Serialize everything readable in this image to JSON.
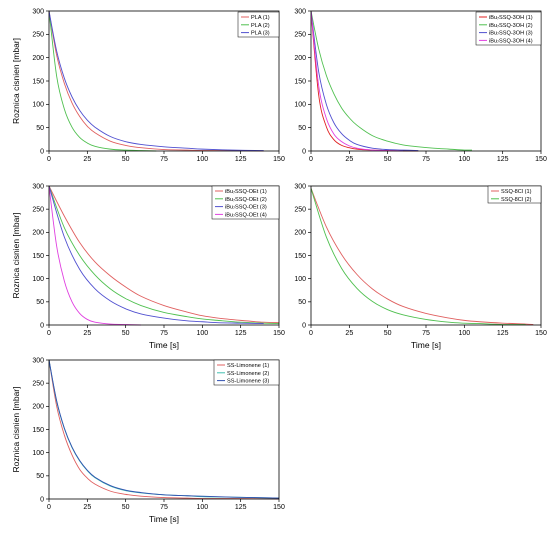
{
  "chart_data": [
    {
      "type": "line",
      "title": "",
      "xlabel": "",
      "ylabel": "Roznica cisnien [mbar]",
      "xlim": [
        0,
        150
      ],
      "ylim": [
        0,
        300
      ],
      "xticks": [
        0,
        25,
        50,
        75,
        100,
        125,
        150
      ],
      "yticks": [
        0,
        50,
        100,
        150,
        200,
        250,
        300
      ],
      "legend_position": "top-right",
      "series": [
        {
          "name": "PLA (1)",
          "color": "#e06060",
          "x": [
            0,
            5,
            10,
            15,
            20,
            25,
            30,
            40,
            50,
            60,
            75,
            90,
            100,
            120,
            140
          ],
          "y": [
            300,
            205,
            145,
            103,
            74,
            53,
            39,
            21,
            12,
            7,
            3,
            2,
            1,
            1,
            0
          ]
        },
        {
          "name": "PLA (2)",
          "color": "#50c050",
          "x": [
            0,
            5,
            10,
            15,
            20,
            25,
            30,
            40,
            50,
            60,
            70
          ],
          "y": [
            300,
            160,
            90,
            51,
            29,
            17,
            10,
            4,
            2,
            1,
            0
          ]
        },
        {
          "name": "PLA (3)",
          "color": "#5050d0",
          "x": [
            0,
            5,
            10,
            15,
            20,
            25,
            30,
            40,
            50,
            60,
            75,
            90,
            100,
            120,
            140
          ],
          "y": [
            300,
            214,
            156,
            116,
            87,
            66,
            51,
            31,
            20,
            14,
            9,
            6,
            4,
            2,
            1
          ]
        }
      ]
    },
    {
      "type": "line",
      "title": "",
      "xlabel": "",
      "ylabel": "",
      "xlim": [
        0,
        150
      ],
      "ylim": [
        0,
        300
      ],
      "xticks": [
        0,
        25,
        50,
        75,
        100,
        125,
        150
      ],
      "yticks": [
        0,
        50,
        100,
        150,
        200,
        250,
        300
      ],
      "legend_position": "top-right",
      "series": [
        {
          "name": "iBu₇SSQ-3OH (1)",
          "color": "#e02020",
          "x": [
            0,
            5,
            10,
            15,
            20,
            25,
            30,
            40,
            50,
            60,
            70
          ],
          "y": [
            300,
            120,
            52,
            24,
            12,
            7,
            4,
            2,
            1,
            0,
            0
          ]
        },
        {
          "name": "iBu₇SSQ-3OH (2)",
          "color": "#50c050",
          "x": [
            0,
            5,
            10,
            15,
            20,
            25,
            30,
            40,
            50,
            60,
            70,
            80,
            90,
            100,
            105
          ],
          "y": [
            300,
            219,
            162,
            122,
            92,
            71,
            55,
            33,
            21,
            13,
            9,
            6,
            4,
            2,
            2
          ]
        },
        {
          "name": "iBu₇SSQ-3OH (3)",
          "color": "#5050d0",
          "x": [
            0,
            5,
            10,
            15,
            20,
            25,
            30,
            40,
            50,
            60,
            70
          ],
          "y": [
            300,
            170,
            100,
            60,
            37,
            23,
            14,
            6,
            3,
            2,
            1
          ]
        },
        {
          "name": "iBu₇SSQ-3OH (4)",
          "color": "#e040e0",
          "x": [
            0,
            5,
            10,
            15,
            20,
            25,
            30,
            40,
            50,
            60
          ],
          "y": [
            300,
            140,
            70,
            36,
            20,
            11,
            6,
            2,
            1,
            0
          ]
        }
      ]
    },
    {
      "type": "line",
      "title": "",
      "xlabel": "Time [s]",
      "ylabel": "Roznica cisnien [mbar]",
      "xlim": [
        0,
        150
      ],
      "ylim": [
        0,
        300
      ],
      "xticks": [
        0,
        25,
        50,
        75,
        100,
        125,
        150
      ],
      "yticks": [
        0,
        50,
        100,
        150,
        200,
        250,
        300
      ],
      "legend_position": "top-right",
      "series": [
        {
          "name": "iBu₇SSQ-OEt (1)",
          "color": "#e06060",
          "x": [
            0,
            10,
            20,
            30,
            40,
            50,
            60,
            75,
            90,
            100,
            110,
            125,
            140,
            150
          ],
          "y": [
            300,
            235,
            178,
            136,
            106,
            82,
            62,
            42,
            28,
            20,
            15,
            10,
            6,
            5
          ]
        },
        {
          "name": "iBu₇SSQ-OEt (2)",
          "color": "#50c050",
          "x": [
            0,
            10,
            20,
            30,
            40,
            50,
            60,
            75,
            90,
            100,
            110,
            125,
            140,
            150
          ],
          "y": [
            300,
            210,
            150,
            108,
            78,
            57,
            42,
            27,
            18,
            13,
            10,
            6,
            4,
            3
          ]
        },
        {
          "name": "iBu₇SSQ-OEt (3)",
          "color": "#5050d0",
          "x": [
            0,
            10,
            20,
            30,
            40,
            50,
            60,
            75,
            90,
            100,
            110,
            125,
            140
          ],
          "y": [
            300,
            190,
            120,
            78,
            52,
            35,
            24,
            15,
            9,
            7,
            5,
            4,
            3
          ]
        },
        {
          "name": "iBu₇SSQ-OEt (4)",
          "color": "#e040e0",
          "x": [
            0,
            5,
            10,
            15,
            20,
            25,
            30,
            40,
            50,
            60
          ],
          "y": [
            300,
            170,
            95,
            50,
            25,
            12,
            6,
            2,
            1,
            0
          ]
        }
      ]
    },
    {
      "type": "line",
      "title": "",
      "xlabel": "Time [s]",
      "ylabel": "",
      "xlim": [
        0,
        150
      ],
      "ylim": [
        0,
        300
      ],
      "xticks": [
        0,
        25,
        50,
        75,
        100,
        125,
        150
      ],
      "yticks": [
        0,
        50,
        100,
        150,
        200,
        250,
        300
      ],
      "legend_position": "top-right",
      "series": [
        {
          "name": "SSQ-8Cl (1)",
          "color": "#e06060",
          "x": [
            0,
            10,
            20,
            30,
            40,
            50,
            60,
            75,
            90,
            100,
            110,
            125,
            140,
            145
          ],
          "y": [
            295,
            212,
            152,
            109,
            78,
            56,
            40,
            25,
            15,
            10,
            7,
            4,
            2,
            1
          ]
        },
        {
          "name": "SSQ-8Cl (2)",
          "color": "#50c050",
          "x": [
            0,
            10,
            20,
            30,
            40,
            50,
            60,
            75,
            90,
            100,
            110,
            125,
            140
          ],
          "y": [
            295,
            190,
            122,
            79,
            51,
            33,
            22,
            12,
            6,
            4,
            3,
            1,
            1
          ]
        }
      ]
    },
    {
      "type": "line",
      "title": "",
      "xlabel": "Time [s]",
      "ylabel": "Roznica cisnien [mbar]",
      "xlim": [
        0,
        150
      ],
      "ylim": [
        0,
        300
      ],
      "xticks": [
        0,
        25,
        50,
        75,
        100,
        125,
        150
      ],
      "yticks": [
        0,
        50,
        100,
        150,
        200,
        250,
        300
      ],
      "legend_position": "top-right",
      "series": [
        {
          "name": "SS-Limonene (1)",
          "color": "#e06060",
          "x": [
            0,
            5,
            10,
            15,
            20,
            25,
            30,
            40,
            50,
            60,
            75,
            90,
            100,
            120,
            150
          ],
          "y": [
            300,
            200,
            138,
            95,
            64,
            45,
            32,
            17,
            10,
            6,
            3,
            2,
            1,
            1,
            0
          ]
        },
        {
          "name": "SS-Limonene (2)",
          "color": "#40c0b0",
          "x": [
            0,
            5,
            10,
            15,
            20,
            25,
            30,
            40,
            50,
            60,
            75,
            90,
            100,
            120,
            150
          ],
          "y": [
            300,
            210,
            152,
            111,
            82,
            61,
            46,
            28,
            18,
            13,
            9,
            7,
            5,
            4,
            2
          ]
        },
        {
          "name": "SS-Limonene (3)",
          "color": "#3050b0",
          "x": [
            0,
            5,
            10,
            15,
            20,
            25,
            30,
            40,
            50,
            60,
            75,
            90,
            100,
            120,
            150
          ],
          "y": [
            300,
            212,
            153,
            112,
            83,
            62,
            47,
            29,
            19,
            14,
            9,
            7,
            6,
            4,
            2
          ]
        }
      ]
    }
  ]
}
